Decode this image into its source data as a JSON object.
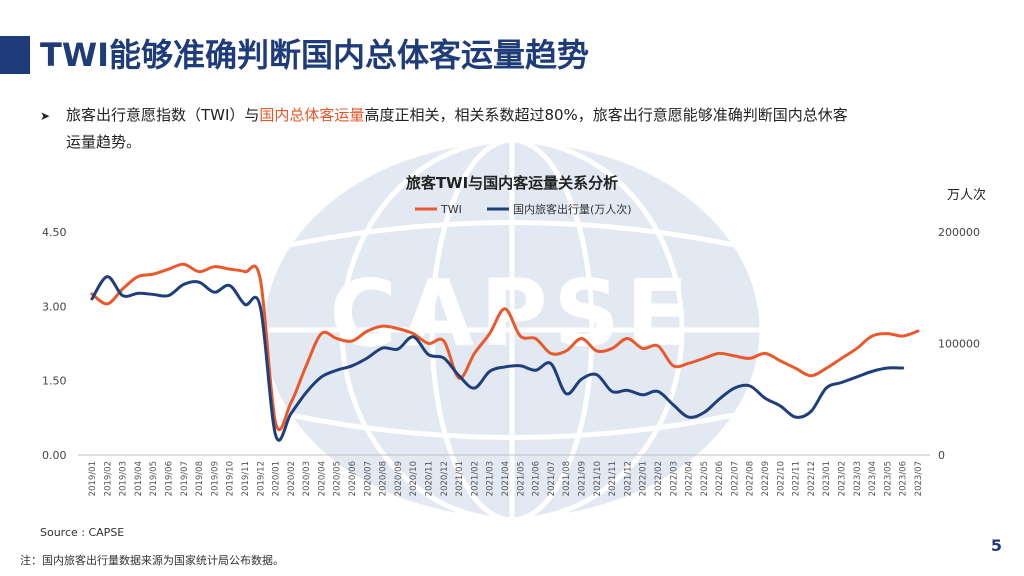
{
  "page": {
    "title": "TWI能够准确判断国内总体客运量趋势",
    "page_number": "5"
  },
  "bullet": {
    "prefix": "旅客出行意愿指数（TWI）与",
    "highlight": "国内总体客运量",
    "rest": "高度正相关，相关系数超过80%，旅客出行意愿能够准确判断国内总休客",
    "line2": "运量趋势。"
  },
  "source": "Source : CAPSE",
  "note": "注：国内旅客出行量数据来源为国家统计局公布数据。",
  "watermark": "CAPSE",
  "colors": {
    "twi": "#e9592c",
    "passengers": "#1e3f7c",
    "title": "#1f3c7a",
    "grid": "#d9d9d9"
  },
  "chart_data": {
    "type": "line",
    "title": "旅客TWI与国内客运量关系分析",
    "right_unit": "万人次",
    "legend_position": "top-center",
    "grid": false,
    "left_axis": {
      "ticks": [
        "4.50",
        "3.00",
        "1.50",
        "0.00"
      ],
      "ylim": [
        0,
        4.5
      ]
    },
    "right_axis": {
      "ticks": [
        "200000",
        "100000",
        "0"
      ],
      "ylim": [
        0,
        200000
      ]
    },
    "x": [
      "2019/01",
      "2019/02",
      "2019/03",
      "2019/04",
      "2019/05",
      "2019/06",
      "2019/07",
      "2019/08",
      "2019/09",
      "2019/10",
      "2019/11",
      "2019/12",
      "2020/01",
      "2020/02",
      "2020/03",
      "2020/04",
      "2020/05",
      "2020/06",
      "2020/07",
      "2020/08",
      "2020/09",
      "2020/10",
      "2020/11",
      "2020/12",
      "2021/01",
      "2021/02",
      "2021/03",
      "2021/04",
      "2021/05",
      "2021/06",
      "2021/07",
      "2021/08",
      "2021/09",
      "2021/10",
      "2021/11",
      "2021/12",
      "2022/01",
      "2022/02",
      "2022/03",
      "2022/04",
      "2022/05",
      "2022/06",
      "2022/07",
      "2022/08",
      "2022/09",
      "2022/10",
      "2022/11",
      "2022/12",
      "2023/01",
      "2023/02",
      "2023/03",
      "2023/04",
      "2023/05",
      "2023/06",
      "2023/07"
    ],
    "x_ticks": [
      "2019/01",
      "2019/02",
      "2019/03",
      "2019/04",
      "2019/05",
      "2019/06",
      "2019/07",
      "2019/08",
      "2019/09",
      "2019/10",
      "2019/11",
      "2019/12",
      "2020/01",
      "2020/02",
      "2020/03",
      "2020/04",
      "2020/05",
      "2020/06",
      "2020/07",
      "2020/08",
      "2020/09",
      "2020/10",
      "2020/11",
      "2020/12",
      "2021/01",
      "2021/02",
      "2021/03",
      "2021/04",
      "2021/05",
      "2021/06",
      "2021/07",
      "2021/08",
      "2021/09",
      "2021/10",
      "2021/11",
      "2021/12",
      "2022/01",
      "2022/02",
      "2022/03",
      "2022/04",
      "2022/05",
      "2022/06",
      "2022/07",
      "2022/08",
      "2022/09",
      "2022/10",
      "2022/11",
      "2022/12",
      "2023/01",
      "2023/02",
      "2023/03",
      "2023/04",
      "2023/05",
      "2023/06",
      "2023/07"
    ],
    "series": [
      {
        "name": "TWI",
        "axis": "left",
        "values": [
          3.25,
          3.05,
          3.35,
          3.6,
          3.65,
          3.75,
          3.85,
          3.7,
          3.8,
          3.75,
          3.7,
          3.55,
          0.65,
          1.05,
          1.8,
          2.45,
          2.35,
          2.3,
          2.5,
          2.6,
          2.55,
          2.45,
          2.25,
          2.3,
          1.55,
          2.05,
          2.45,
          2.95,
          2.4,
          2.35,
          2.05,
          2.1,
          2.35,
          2.1,
          2.15,
          2.35,
          2.15,
          2.2,
          1.8,
          1.85,
          1.95,
          2.05,
          2.0,
          1.95,
          2.05,
          1.9,
          1.75,
          1.6,
          1.75,
          1.95,
          2.15,
          2.4,
          2.45,
          2.4,
          2.5
        ]
      },
      {
        "name": "国内旅客出行量(万人次)",
        "axis": "right",
        "values": [
          140000,
          160000,
          143000,
          145000,
          144000,
          143000,
          153000,
          155000,
          146000,
          152000,
          135000,
          133000,
          18000,
          37000,
          56000,
          70000,
          76000,
          80000,
          87000,
          96000,
          95000,
          106000,
          90000,
          87000,
          71000,
          60000,
          75000,
          79000,
          80000,
          76000,
          82000,
          55000,
          68000,
          72000,
          57000,
          58000,
          54000,
          57000,
          45000,
          34000,
          38000,
          50000,
          60000,
          62000,
          51000,
          44000,
          34000,
          39000,
          60000,
          65000,
          70000,
          75000,
          78000,
          78000,
          null
        ]
      }
    ]
  }
}
